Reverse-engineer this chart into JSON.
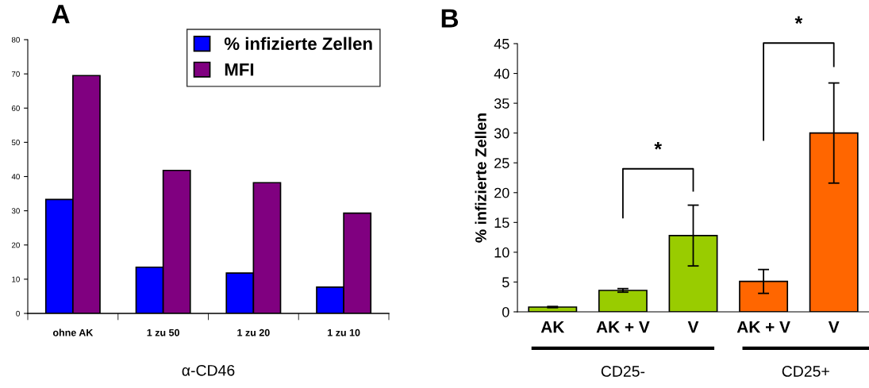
{
  "chart_data": [
    {
      "type": "bar",
      "title": "A",
      "xlabel": "α-CD46",
      "categories": [
        "ohne AK",
        "1 zu 50",
        "1 zu 20",
        "1 zu 10"
      ],
      "series": [
        {
          "name": "% infizierte Zellen",
          "color": "#0000ff",
          "values": [
            33.3,
            13.5,
            11.8,
            7.7
          ]
        },
        {
          "name": "MFI",
          "color": "#800080",
          "values": [
            69.5,
            41.8,
            38.2,
            29.3
          ]
        }
      ],
      "ylim": [
        0,
        80
      ],
      "yticks": [
        0,
        10,
        20,
        30,
        40,
        50,
        60,
        70,
        80
      ],
      "legend": "top right",
      "grid": false
    },
    {
      "type": "bar",
      "title": "B",
      "ylabel": "% infizierte Zellen",
      "categories": [
        "AK",
        "AK + V",
        "V",
        "AK + V",
        "V"
      ],
      "values": [
        0.8,
        3.6,
        12.8,
        5.1,
        30.0
      ],
      "colors": [
        "#99cc00",
        "#99cc00",
        "#99cc00",
        "#ff6600",
        "#ff6600"
      ],
      "errors": [
        0.1,
        0.3,
        5.1,
        2.0,
        8.4
      ],
      "ylim": [
        0,
        45
      ],
      "yticks": [
        0,
        5,
        10,
        15,
        20,
        25,
        30,
        35,
        40,
        45
      ],
      "grid": false,
      "annotations": [
        "*",
        "*",
        "CD25-",
        "CD25+"
      ]
    }
  ]
}
